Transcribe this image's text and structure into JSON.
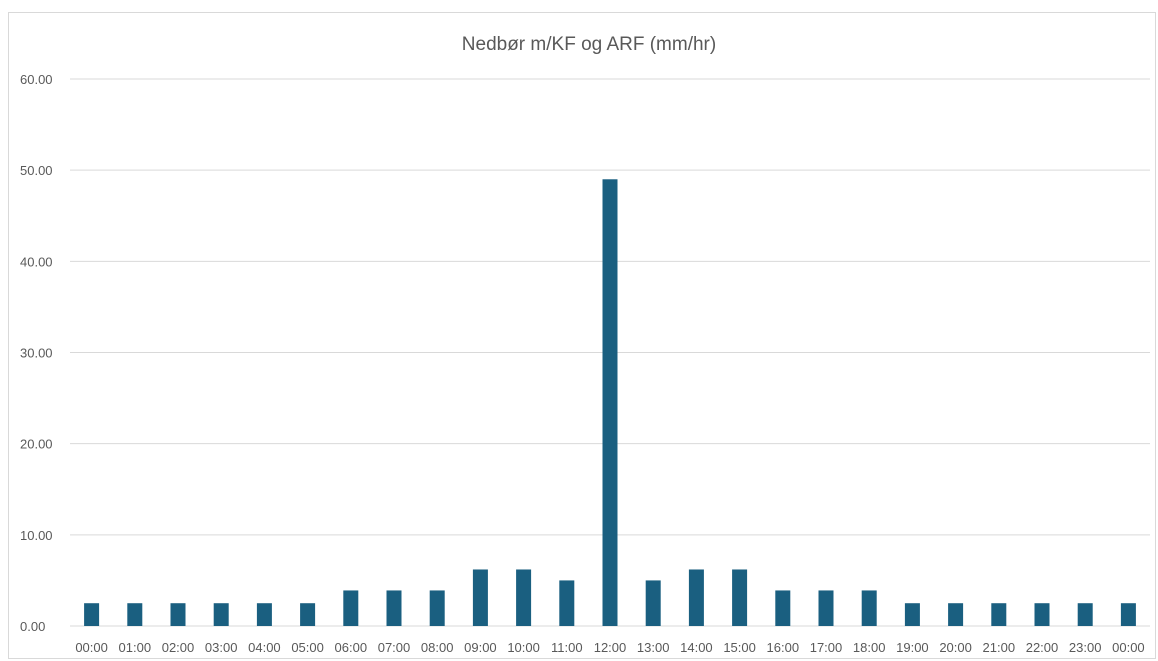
{
  "chart_data": {
    "type": "bar",
    "title": "Nedbør m/KF og ARF (mm/hr)",
    "xlabel": "",
    "ylabel": "",
    "categories": [
      "00:00",
      "01:00",
      "02:00",
      "03:00",
      "04:00",
      "05:00",
      "06:00",
      "07:00",
      "08:00",
      "09:00",
      "10:00",
      "11:00",
      "12:00",
      "13:00",
      "14:00",
      "15:00",
      "16:00",
      "17:00",
      "18:00",
      "19:00",
      "20:00",
      "21:00",
      "22:00",
      "23:00",
      "00:00"
    ],
    "values": [
      2.5,
      2.5,
      2.5,
      2.5,
      2.5,
      2.5,
      3.9,
      3.9,
      3.9,
      6.2,
      6.2,
      5.0,
      49.0,
      5.0,
      6.2,
      6.2,
      3.9,
      3.9,
      3.9,
      2.5,
      2.5,
      2.5,
      2.5,
      2.5,
      2.5
    ],
    "ylim": [
      0,
      60
    ],
    "yticks": [
      "0.00",
      "10.00",
      "20.00",
      "30.00",
      "40.00",
      "50.00",
      "60.00"
    ],
    "grid": true,
    "legend": "none",
    "colors": {
      "bar": "#1a5f80",
      "grid": "#d9d9d9",
      "text": "#595959"
    }
  }
}
